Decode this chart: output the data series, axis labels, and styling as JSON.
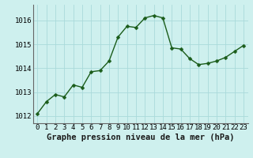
{
  "x": [
    0,
    1,
    2,
    3,
    4,
    5,
    6,
    7,
    8,
    9,
    10,
    11,
    12,
    13,
    14,
    15,
    16,
    17,
    18,
    19,
    20,
    21,
    22,
    23
  ],
  "y": [
    1012.1,
    1012.6,
    1012.9,
    1012.8,
    1013.3,
    1013.2,
    1013.85,
    1013.9,
    1014.3,
    1015.3,
    1015.75,
    1015.7,
    1016.1,
    1016.2,
    1016.1,
    1014.85,
    1014.8,
    1014.4,
    1014.15,
    1014.2,
    1014.3,
    1014.45,
    1014.7,
    1014.95
  ],
  "background_color": "#cef0ee",
  "line_color": "#1a5c1a",
  "marker_color": "#1a5c1a",
  "grid_color": "#aadada",
  "xlabel": "Graphe pression niveau de la mer (hPa)",
  "ylim": [
    1011.7,
    1016.65
  ],
  "yticks": [
    1012,
    1013,
    1014,
    1015,
    1016
  ],
  "xticks": [
    0,
    1,
    2,
    3,
    4,
    5,
    6,
    7,
    8,
    9,
    10,
    11,
    12,
    13,
    14,
    15,
    16,
    17,
    18,
    19,
    20,
    21,
    22,
    23
  ],
  "xlabel_fontsize": 7.5,
  "tick_fontsize": 6.5,
  "line_width": 1.0,
  "marker_size": 2.5
}
